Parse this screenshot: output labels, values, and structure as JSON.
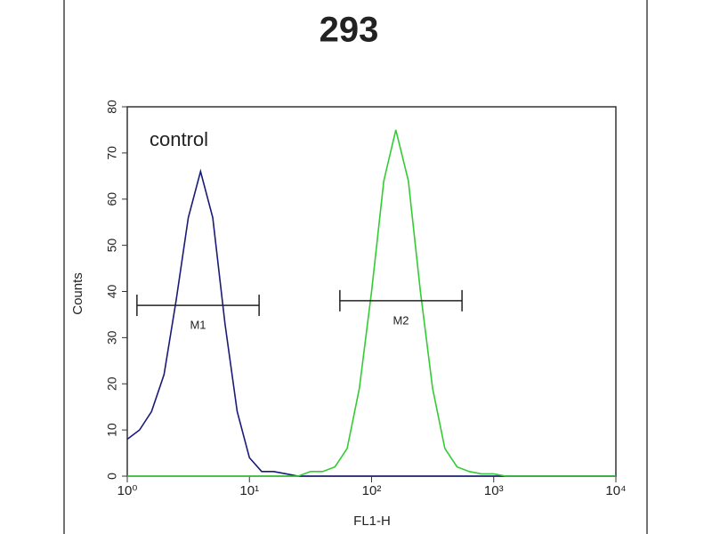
{
  "chart_data": {
    "type": "line",
    "title": "293",
    "x_label": "FL1-H",
    "y_label": "Counts",
    "annotation": "control",
    "x_scale": "log",
    "x": [
      1,
      1.26,
      1.58,
      2,
      2.51,
      3.16,
      3.98,
      5.01,
      6.31,
      7.94,
      10,
      12.6,
      15.8,
      20,
      25.1,
      31.6,
      39.8,
      50.1,
      63.1,
      79.4,
      100,
      126,
      158,
      200,
      251,
      316,
      398,
      501,
      631,
      794,
      1000,
      1260,
      1580,
      2000,
      2510,
      3160,
      3980,
      5010,
      6310,
      7940,
      10000
    ],
    "series": [
      {
        "name": "control",
        "color": "#1a1a7a",
        "values": [
          8,
          10,
          14,
          22,
          38,
          56,
          66,
          56,
          33,
          14,
          4,
          1,
          1,
          0.5,
          0,
          0,
          0,
          0,
          0,
          0,
          0,
          0,
          0,
          0,
          0,
          0,
          0,
          0,
          0,
          0,
          0,
          0,
          0,
          0,
          0,
          0,
          0,
          0,
          0,
          0,
          0
        ]
      },
      {
        "name": "293",
        "color": "#33cc33",
        "values": [
          0,
          0,
          0,
          0,
          0,
          0,
          0,
          0,
          0,
          0,
          0,
          0,
          0,
          0,
          0,
          1,
          1,
          2,
          6,
          19,
          40,
          64,
          75,
          64,
          40,
          19,
          6,
          2,
          1,
          0.5,
          0.5,
          0,
          0,
          0,
          0,
          0,
          0,
          0,
          0,
          0,
          0
        ]
      }
    ],
    "gates": [
      {
        "label": "M1",
        "range": [
          1.2,
          12
        ],
        "y": 37
      },
      {
        "label": "M2",
        "range": [
          55,
          550
        ],
        "y": 38
      }
    ],
    "xlim": [
      1,
      10000
    ],
    "xticks": [
      {
        "value": 1,
        "label": "10⁰"
      },
      {
        "value": 10,
        "label": "10¹"
      },
      {
        "value": 100,
        "label": "10²"
      },
      {
        "value": 1000,
        "label": "10³"
      },
      {
        "value": 10000,
        "label": "10⁴"
      }
    ],
    "ylim": [
      0,
      80
    ],
    "yticks": [
      0,
      10,
      20,
      30,
      40,
      50,
      60,
      70,
      80
    ]
  }
}
